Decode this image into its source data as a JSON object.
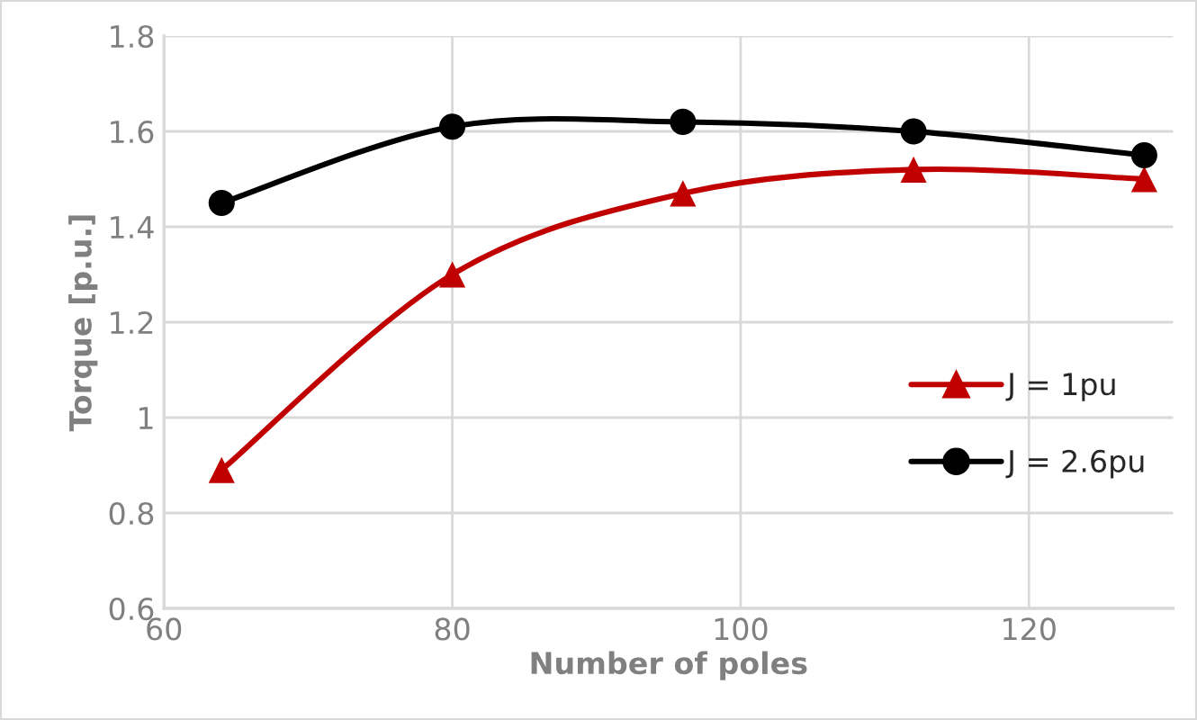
{
  "chart_data": {
    "type": "line",
    "xlabel": "Number of poles",
    "ylabel": "Torque [p.u.]",
    "x": [
      64,
      80,
      96,
      112,
      128
    ],
    "series": [
      {
        "name": "J = 1pu",
        "color": "#c00000",
        "marker": "triangle",
        "values": [
          0.89,
          1.3,
          1.47,
          1.52,
          1.5
        ]
      },
      {
        "name": "J = 2.6pu",
        "color": "#000000",
        "marker": "circle",
        "values": [
          1.45,
          1.61,
          1.62,
          1.6,
          1.55
        ]
      }
    ],
    "xlim": [
      60,
      130
    ],
    "xticks": [
      60,
      80,
      100,
      120
    ],
    "ylim": [
      0.6,
      1.8
    ],
    "yticks": [
      0.6,
      0.8,
      1,
      1.2,
      1.4,
      1.6,
      1.8
    ],
    "grid": true,
    "legend": "right",
    "line_style": "solid"
  }
}
